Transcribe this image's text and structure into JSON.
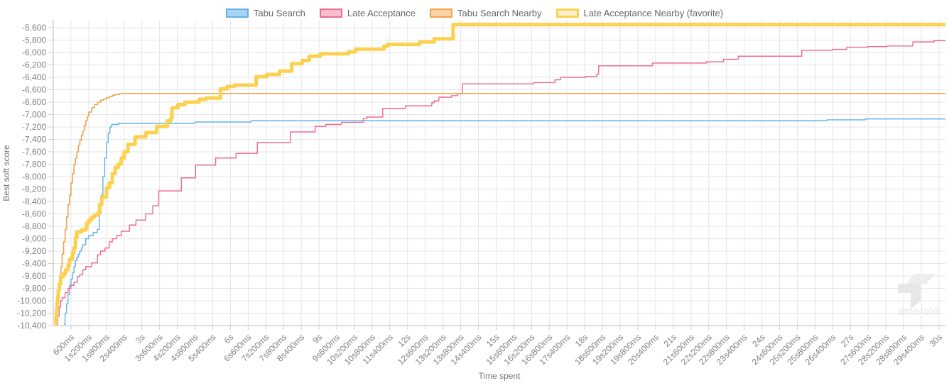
{
  "watermark": {
    "label": "timefold"
  },
  "chart_data": {
    "type": "line",
    "step": "after",
    "title": "",
    "xlabel": "Time spent",
    "ylabel": "Best soft score",
    "grid": true,
    "legend_position": "top",
    "colors": {
      "background": "#ffffff",
      "grid": "#e5e5e5",
      "axis_line": "#b9b9b9",
      "tick_mark": "#cfcfcf",
      "tick_text": "#808080",
      "axis_title_text": "#757575",
      "legend_text": "#666666",
      "watermark": "#e8e8e8"
    },
    "x_axis": {
      "unit": "ms",
      "min_ms": 0,
      "max_ms": 30600,
      "ticks_ms": [
        600,
        1200,
        1800,
        2400,
        3000,
        3600,
        4200,
        4800,
        5400,
        6000,
        6600,
        7200,
        7800,
        8400,
        9000,
        9600,
        10200,
        10800,
        11400,
        12000,
        12600,
        13200,
        13800,
        14400,
        15000,
        15600,
        16200,
        16800,
        17400,
        18000,
        18600,
        19200,
        19800,
        20400,
        21000,
        21600,
        22200,
        22800,
        23400,
        24000,
        24600,
        25200,
        25800,
        26400,
        27000,
        27600,
        28200,
        28800,
        29400,
        30000
      ],
      "tick_labels": [
        "600ms",
        "1s200ms",
        "1s800ms",
        "2s400ms",
        "3s",
        "3s600ms",
        "4s200ms",
        "4s800ms",
        "5s400ms",
        "6s",
        "6s600ms",
        "7s200ms",
        "7s800ms",
        "8s400ms",
        "9s",
        "9s600ms",
        "10s200ms",
        "10s800ms",
        "11s400ms",
        "12s",
        "12s600ms",
        "13s200ms",
        "13s800ms",
        "14s400ms",
        "15s",
        "15s600ms",
        "16s200ms",
        "16s800ms",
        "17s400ms",
        "18s",
        "18s600ms",
        "19s200ms",
        "19s800ms",
        "20s400ms",
        "21s",
        "21s600ms",
        "22s200ms",
        "22s800ms",
        "23s400ms",
        "24s",
        "24s600ms",
        "25s200ms",
        "25s800ms",
        "26s400ms",
        "27s",
        "27s600ms",
        "28s200ms",
        "28s800ms",
        "29s400ms",
        "30s"
      ]
    },
    "y_axis": {
      "min": -10450,
      "max": -5450,
      "ticks": [
        -5600,
        -5800,
        -6000,
        -6200,
        -6400,
        -6600,
        -6800,
        -7000,
        -7200,
        -7400,
        -7600,
        -7800,
        -8000,
        -8200,
        -8400,
        -8600,
        -8800,
        -9000,
        -9200,
        -9400,
        -9600,
        -9800,
        -10000,
        -10200,
        -10400
      ],
      "tick_labels": [
        "-5,600",
        "-5,800",
        "-6,000",
        "-6,200",
        "-6,400",
        "-6,600",
        "-6,800",
        "-7,000",
        "-7,200",
        "-7,400",
        "-7,600",
        "-7,800",
        "-8,000",
        "-8,200",
        "-8,400",
        "-8,600",
        "-8,800",
        "-9,000",
        "-9,200",
        "-9,400",
        "-9,600",
        "-9,800",
        "-10,000",
        "-10,200",
        "-10,400"
      ]
    },
    "series": [
      {
        "name": "Tabu Search",
        "slug": "tabu-search",
        "color": "#64b0e8",
        "legend_fill": "#a9d3f2",
        "swatch_border_px": 2,
        "line_width": 1.4,
        "final_score": -7070,
        "points": [
          [
            360,
            -10380
          ],
          [
            400,
            -10200
          ],
          [
            450,
            -10050
          ],
          [
            500,
            -9900
          ],
          [
            550,
            -9750
          ],
          [
            600,
            -9650
          ],
          [
            650,
            -9550
          ],
          [
            700,
            -9450
          ],
          [
            750,
            -9350
          ],
          [
            800,
            -9300
          ],
          [
            850,
            -9250
          ],
          [
            900,
            -9200
          ],
          [
            950,
            -9150
          ],
          [
            1000,
            -9100
          ],
          [
            1100,
            -9000
          ],
          [
            1200,
            -8950
          ],
          [
            1350,
            -8900
          ],
          [
            1490,
            -8850
          ],
          [
            1560,
            -8600
          ],
          [
            1620,
            -8300
          ],
          [
            1680,
            -8000
          ],
          [
            1740,
            -7700
          ],
          [
            1800,
            -7450
          ],
          [
            1860,
            -7300
          ],
          [
            1920,
            -7200
          ],
          [
            1980,
            -7160
          ],
          [
            2200,
            -7140
          ],
          [
            4800,
            -7120
          ],
          [
            6700,
            -7100
          ],
          [
            26200,
            -7085
          ],
          [
            27500,
            -7070
          ],
          [
            30200,
            -7070
          ]
        ]
      },
      {
        "name": "Late Acceptance",
        "slug": "late-acceptance",
        "color": "#ed6a95",
        "legend_fill": "#f8bccf",
        "swatch_border_px": 2,
        "line_width": 1.4,
        "final_score": -5805,
        "points": [
          [
            100,
            -10380
          ],
          [
            150,
            -10250
          ],
          [
            200,
            -10100
          ],
          [
            250,
            -10000
          ],
          [
            300,
            -9950
          ],
          [
            400,
            -9870
          ],
          [
            500,
            -9800
          ],
          [
            600,
            -9750
          ],
          [
            700,
            -9700
          ],
          [
            820,
            -9610
          ],
          [
            900,
            -9580
          ],
          [
            1000,
            -9500
          ],
          [
            1100,
            -9450
          ],
          [
            1300,
            -9390
          ],
          [
            1500,
            -9260
          ],
          [
            1600,
            -9200
          ],
          [
            1750,
            -9150
          ],
          [
            1900,
            -9050
          ],
          [
            2000,
            -9000
          ],
          [
            2150,
            -8950
          ],
          [
            2300,
            -8880
          ],
          [
            2580,
            -8780
          ],
          [
            2800,
            -8700
          ],
          [
            3130,
            -8600
          ],
          [
            3370,
            -8470
          ],
          [
            3570,
            -8230
          ],
          [
            4340,
            -8020
          ],
          [
            4820,
            -7815
          ],
          [
            5500,
            -7700
          ],
          [
            6190,
            -7625
          ],
          [
            6910,
            -7450
          ],
          [
            8030,
            -7280
          ],
          [
            8870,
            -7190
          ],
          [
            9230,
            -7160
          ],
          [
            9760,
            -7125
          ],
          [
            10500,
            -7065
          ],
          [
            10620,
            -7040
          ],
          [
            11160,
            -6900
          ],
          [
            11930,
            -6860
          ],
          [
            12820,
            -6810
          ],
          [
            12900,
            -6780
          ],
          [
            13060,
            -6720
          ],
          [
            13490,
            -6695
          ],
          [
            13700,
            -6665
          ],
          [
            13860,
            -6505
          ],
          [
            16270,
            -6485
          ],
          [
            16990,
            -6440
          ],
          [
            17180,
            -6400
          ],
          [
            18030,
            -6385
          ],
          [
            18410,
            -6350
          ],
          [
            18470,
            -6215
          ],
          [
            20290,
            -6170
          ],
          [
            22120,
            -6150
          ],
          [
            22700,
            -6110
          ],
          [
            23200,
            -6060
          ],
          [
            25350,
            -5965
          ],
          [
            26380,
            -5950
          ],
          [
            26870,
            -5915
          ],
          [
            27590,
            -5905
          ],
          [
            28240,
            -5895
          ],
          [
            29110,
            -5830
          ],
          [
            29830,
            -5810
          ],
          [
            30200,
            -5805
          ]
        ]
      },
      {
        "name": "Tabu Search Nearby",
        "slug": "tabu-search-nearby",
        "color": "#f2a14d",
        "legend_fill": "#fad4a5",
        "swatch_border_px": 2,
        "line_width": 1.6,
        "final_score": -6660,
        "points": [
          [
            80,
            -10350
          ],
          [
            120,
            -10150
          ],
          [
            150,
            -10000
          ],
          [
            180,
            -9850
          ],
          [
            220,
            -9650
          ],
          [
            260,
            -9450
          ],
          [
            300,
            -9250
          ],
          [
            350,
            -9050
          ],
          [
            400,
            -8850
          ],
          [
            450,
            -8650
          ],
          [
            500,
            -8450
          ],
          [
            550,
            -8300
          ],
          [
            600,
            -8100
          ],
          [
            650,
            -7950
          ],
          [
            700,
            -7800
          ],
          [
            750,
            -7700
          ],
          [
            800,
            -7600
          ],
          [
            850,
            -7500
          ],
          [
            900,
            -7420
          ],
          [
            950,
            -7340
          ],
          [
            1000,
            -7260
          ],
          [
            1050,
            -7180
          ],
          [
            1100,
            -7100
          ],
          [
            1150,
            -7030
          ],
          [
            1200,
            -6960
          ],
          [
            1300,
            -6890
          ],
          [
            1400,
            -6840
          ],
          [
            1500,
            -6800
          ],
          [
            1600,
            -6770
          ],
          [
            1700,
            -6750
          ],
          [
            1800,
            -6730
          ],
          [
            1900,
            -6710
          ],
          [
            2000,
            -6690
          ],
          [
            2100,
            -6675
          ],
          [
            2240,
            -6660
          ],
          [
            30200,
            -6660
          ]
        ]
      },
      {
        "name": "Late Acceptance Nearby (favorite)",
        "slug": "late-acceptance-nearby-favorite",
        "color": "#fbd14f",
        "legend_fill": "#faf0cc",
        "swatch_border_px": 3,
        "line_width": 5,
        "final_score": -5550,
        "points": [
          [
            60,
            -10380
          ],
          [
            90,
            -10260
          ],
          [
            110,
            -10150
          ],
          [
            130,
            -10030
          ],
          [
            150,
            -9940
          ],
          [
            170,
            -9840
          ],
          [
            200,
            -9730
          ],
          [
            250,
            -9610
          ],
          [
            350,
            -9560
          ],
          [
            420,
            -9500
          ],
          [
            500,
            -9430
          ],
          [
            550,
            -9330
          ],
          [
            650,
            -9230
          ],
          [
            700,
            -9150
          ],
          [
            750,
            -8980
          ],
          [
            800,
            -8890
          ],
          [
            950,
            -8860
          ],
          [
            1080,
            -8840
          ],
          [
            1130,
            -8750
          ],
          [
            1200,
            -8700
          ],
          [
            1300,
            -8650
          ],
          [
            1400,
            -8620
          ],
          [
            1500,
            -8590
          ],
          [
            1570,
            -8450
          ],
          [
            1640,
            -8330
          ],
          [
            1800,
            -8180
          ],
          [
            1900,
            -8100
          ],
          [
            2000,
            -7950
          ],
          [
            2100,
            -7850
          ],
          [
            2200,
            -7800
          ],
          [
            2300,
            -7700
          ],
          [
            2400,
            -7600
          ],
          [
            2530,
            -7480
          ],
          [
            2770,
            -7360
          ],
          [
            3130,
            -7290
          ],
          [
            3500,
            -7190
          ],
          [
            3860,
            -7100
          ],
          [
            3980,
            -7060
          ],
          [
            4020,
            -6890
          ],
          [
            4220,
            -6840
          ],
          [
            4460,
            -6800
          ],
          [
            4940,
            -6755
          ],
          [
            5180,
            -6735
          ],
          [
            5660,
            -6585
          ],
          [
            5900,
            -6545
          ],
          [
            6140,
            -6525
          ],
          [
            6870,
            -6390
          ],
          [
            7230,
            -6355
          ],
          [
            7660,
            -6300
          ],
          [
            8070,
            -6180
          ],
          [
            8430,
            -6130
          ],
          [
            8670,
            -6060
          ],
          [
            9040,
            -6020
          ],
          [
            10000,
            -5990
          ],
          [
            10240,
            -5945
          ],
          [
            11200,
            -5900
          ],
          [
            11320,
            -5870
          ],
          [
            12410,
            -5830
          ],
          [
            12900,
            -5780
          ],
          [
            13540,
            -5550
          ],
          [
            30200,
            -5550
          ]
        ]
      }
    ]
  }
}
